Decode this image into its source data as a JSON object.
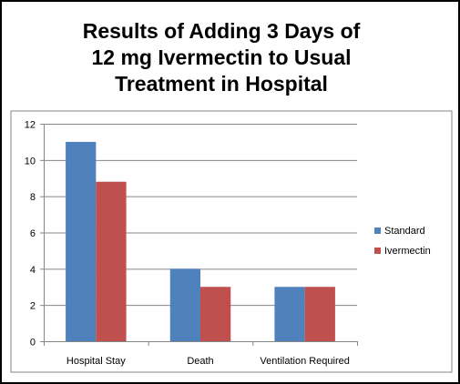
{
  "chart_data": {
    "type": "bar",
    "title": "Results of Adding 3 Days of\n12 mg Ivermectin to Usual\nTreatment in Hospital",
    "categories": [
      "Hospital Stay",
      "Death",
      "Ventilation Required"
    ],
    "series": [
      {
        "name": "Standard",
        "values": [
          11,
          4,
          3
        ],
        "color": "#4f81bd"
      },
      {
        "name": "Ivermectin",
        "values": [
          8.8,
          3,
          3
        ],
        "color": "#c0504d"
      }
    ],
    "yticks": [
      0,
      2,
      4,
      6,
      8,
      10,
      12
    ],
    "ylim": [
      0,
      12
    ],
    "grid": true,
    "legend_position": "right"
  }
}
